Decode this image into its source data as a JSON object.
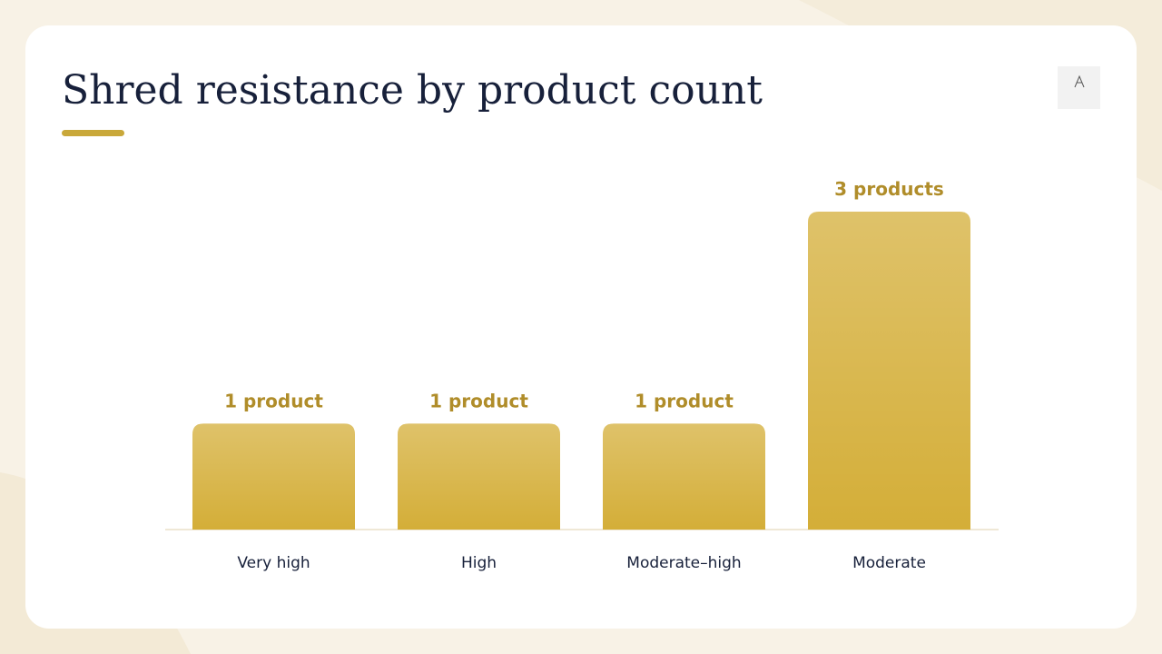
{
  "chart_data": {
    "type": "bar",
    "title": "Shred resistance by product count",
    "categories": [
      "Very high",
      "High",
      "Moderate–high",
      "Moderate"
    ],
    "values": [
      1,
      1,
      1,
      3
    ],
    "value_labels": [
      "1 product",
      "1 product",
      "1 product",
      "3 products"
    ],
    "color": "#d4ae38"
  }
}
